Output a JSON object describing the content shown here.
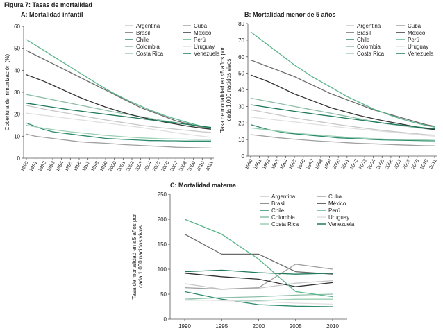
{
  "figure_title": "Figura 7: Tasas de mortalidad",
  "colors": {
    "Argentina": "#c8c8c8",
    "Brasil": "#6b6b6b",
    "Chile": "#2e8b6e",
    "Colombia": "#8fbfa8",
    "Costa Rica": "#9ccfb3",
    "Cuba": "#a0a0a0",
    "México": "#333333",
    "Perú": "#5ab58a",
    "Uruguay": "#e0e0e0",
    "Venezuela": "#1e7a5a"
  },
  "chart_data": [
    {
      "id": "A",
      "type": "line",
      "title": "A: Mortalidad infantil",
      "ylabel": "Cobertura de inmunización (%)",
      "xlabel": "",
      "categories": [
        "1990",
        "1991",
        "1992",
        "1993",
        "1994",
        "1995",
        "1996",
        "1997",
        "1998",
        "1999",
        "2000",
        "2001",
        "2002",
        "2003",
        "2004",
        "2005",
        "2006",
        "2007",
        "2008",
        "2009",
        "2010",
        "2011"
      ],
      "ylim": [
        0,
        60
      ],
      "yticks": [
        0,
        10,
        20,
        30,
        40,
        50,
        60
      ],
      "series": [
        {
          "name": "Argentina",
          "values": [
            24,
            23.2,
            22.4,
            21.6,
            20.9,
            20.2,
            19.5,
            18.8,
            18.1,
            17.4,
            16.8,
            16.2,
            15.6,
            15,
            14.5,
            14,
            13.6,
            13.2,
            12.8,
            12.4,
            12,
            11.7
          ]
        },
        {
          "name": "Brasil",
          "values": [
            49,
            47,
            45,
            43,
            41,
            39,
            37,
            35,
            33,
            31,
            29,
            27,
            25,
            23,
            21.5,
            20,
            18.5,
            17,
            16,
            15,
            14,
            13.5
          ]
        },
        {
          "name": "Chile",
          "values": [
            16,
            14.5,
            13,
            12,
            11.5,
            11,
            10.5,
            10,
            9.5,
            9,
            8.8,
            8.6,
            8.4,
            8.2,
            8,
            8,
            7.9,
            7.9,
            7.8,
            7.8,
            7.8,
            7.8
          ]
        },
        {
          "name": "Colombia",
          "values": [
            29,
            28.2,
            27.4,
            26.6,
            25.8,
            25,
            24.2,
            23.4,
            22.6,
            21.8,
            21,
            20.3,
            19.6,
            18.9,
            18.2,
            17.5,
            16.8,
            16.2,
            15.6,
            15,
            14.5,
            14
          ]
        },
        {
          "name": "Costa Rica",
          "values": [
            15,
            14.3,
            13.6,
            13,
            12.5,
            12,
            11.6,
            11.2,
            10.8,
            10.4,
            10.1,
            9.8,
            9.5,
            9.3,
            9.1,
            8.9,
            8.8,
            8.7,
            8.7,
            8.6,
            8.6,
            8.6
          ]
        },
        {
          "name": "Cuba",
          "values": [
            11,
            10,
            9.5,
            9,
            8.5,
            8,
            7.5,
            7.2,
            7,
            6.8,
            6.5,
            6.2,
            6,
            5.8,
            5.6,
            5.4,
            5.2,
            5,
            4.9,
            4.8,
            4.7,
            4.6
          ]
        },
        {
          "name": "México",
          "values": [
            38,
            36.5,
            35,
            33.2,
            31.4,
            29.6,
            27.8,
            26.2,
            24.7,
            23.3,
            22,
            20.8,
            19.7,
            18.7,
            17.8,
            17,
            16.2,
            15.5,
            14.8,
            14.2,
            13.6,
            13.2
          ]
        },
        {
          "name": "Perú",
          "values": [
            54,
            51.5,
            49,
            46.5,
            44,
            41.5,
            39,
            36.5,
            34,
            31.6,
            29.4,
            27.4,
            25.5,
            23.7,
            22,
            20.5,
            19,
            17.8,
            16.6,
            15.5,
            14.5,
            13.5
          ]
        },
        {
          "name": "Uruguay",
          "values": [
            20.5,
            20,
            19.5,
            19,
            18.5,
            18,
            17.5,
            17,
            16.5,
            16,
            15.5,
            15,
            14.5,
            14,
            13.4,
            12.8,
            12.2,
            11.6,
            11,
            10.5,
            10,
            9.5
          ]
        },
        {
          "name": "Venezuela",
          "values": [
            25,
            24.4,
            23.8,
            23.2,
            22.6,
            22,
            21.5,
            21,
            20.5,
            20,
            19.5,
            19,
            18.5,
            18,
            17.5,
            17,
            16.5,
            16,
            15.5,
            15,
            14.5,
            14
          ]
        }
      ],
      "legend": {
        "col1": [
          "Argentina",
          "Brasil",
          "Chile",
          "Colombia",
          "Costa Rica"
        ],
        "col2": [
          "Cuba",
          "México",
          "Perú",
          "Uruguay",
          "Venezuela"
        ]
      }
    },
    {
      "id": "B",
      "type": "line",
      "title": "B: Mortalidad menor de 5 años",
      "ylabel": "Tasa de mortalidad en ≤5 años por cada 1.000 nacidos vivos",
      "xlabel": "",
      "categories": [
        "1990",
        "1991",
        "1992",
        "1993",
        "1994",
        "1995",
        "1996",
        "1997",
        "1998",
        "1999",
        "2000",
        "2001",
        "2002",
        "2003",
        "2004",
        "2005",
        "2006",
        "2007",
        "2008",
        "2009",
        "2010",
        "2011"
      ],
      "ylim": [
        0,
        80
      ],
      "yticks": [
        0,
        10,
        20,
        30,
        40,
        50,
        60,
        70,
        80
      ],
      "series": [
        {
          "name": "Argentina",
          "values": [
            28,
            27,
            26,
            25,
            24,
            23,
            22.2,
            21.4,
            20.6,
            19.8,
            19,
            18.3,
            17.6,
            16.9,
            16.2,
            15.6,
            15,
            14.5,
            14,
            13.5,
            13,
            12.7
          ]
        },
        {
          "name": "Brasil",
          "values": [
            58,
            56,
            54,
            52,
            50,
            48,
            45.5,
            43,
            40.5,
            38,
            36,
            34,
            32,
            30,
            28,
            26.5,
            25,
            23.5,
            22,
            20.5,
            19,
            18
          ]
        },
        {
          "name": "Chile",
          "values": [
            19,
            17.5,
            16,
            15,
            14,
            13.5,
            13,
            12.5,
            12,
            11.5,
            11,
            10.8,
            10.5,
            10.3,
            10,
            9.8,
            9.7,
            9.6,
            9.5,
            9.4,
            9.3,
            9.2
          ]
        },
        {
          "name": "Colombia",
          "values": [
            35,
            34,
            33,
            32,
            31,
            30,
            29,
            28,
            27,
            26,
            25,
            24,
            23,
            22,
            21,
            20,
            19.2,
            18.5,
            17.8,
            17.1,
            16.5,
            16
          ]
        },
        {
          "name": "Costa Rica",
          "values": [
            17,
            16.4,
            15.8,
            15.2,
            14.6,
            14,
            13.5,
            13,
            12.6,
            12.2,
            11.8,
            11.4,
            11.1,
            10.8,
            10.5,
            10.3,
            10.1,
            10,
            9.9,
            9.8,
            9.7,
            9.6
          ]
        },
        {
          "name": "Cuba",
          "values": [
            13,
            12.4,
            11.8,
            11.2,
            10.7,
            10.2,
            9.8,
            9.4,
            9,
            8.7,
            8.4,
            8.1,
            7.8,
            7.6,
            7.4,
            7.2,
            7,
            6.8,
            6.6,
            6.4,
            6.3,
            6.2
          ]
        },
        {
          "name": "México",
          "values": [
            49,
            47,
            45,
            42.5,
            40,
            37.5,
            35.5,
            33.5,
            31.5,
            29.5,
            28,
            26.5,
            25,
            23.8,
            22.6,
            21.5,
            20.5,
            19.5,
            18.5,
            17.5,
            16.7,
            16
          ]
        },
        {
          "name": "Perú",
          "values": [
            75,
            71,
            67,
            63,
            59,
            55,
            51.5,
            48,
            45,
            42,
            39,
            36,
            33.5,
            31,
            28.5,
            26.5,
            24.5,
            22.8,
            21.2,
            19.8,
            18.5,
            17.5
          ]
        },
        {
          "name": "Uruguay",
          "values": [
            23.5,
            23,
            22.4,
            21.8,
            21.2,
            20.6,
            20,
            19.4,
            18.8,
            18.2,
            17.6,
            17,
            16.5,
            16,
            15.5,
            15,
            14.5,
            14,
            13.5,
            13,
            12.5,
            12
          ]
        },
        {
          "name": "Venezuela",
          "values": [
            31,
            30.2,
            29.4,
            28.6,
            27.8,
            27,
            26.3,
            25.6,
            24.9,
            24.2,
            23.5,
            22.8,
            22.1,
            21.4,
            20.7,
            20,
            19.4,
            18.8,
            18.2,
            17.6,
            17,
            16.5
          ]
        }
      ],
      "legend": {
        "col1": [
          "Argentina",
          "Brasil",
          "Chile",
          "Colombia",
          "Costa Rica"
        ],
        "col2": [
          "Cuba",
          "México",
          "Perú",
          "Uruguay",
          "Venezuela"
        ]
      }
    },
    {
      "id": "C",
      "type": "line",
      "title": "C: Mortalidad materna",
      "ylabel": "Tasa de mortalidad en ≤5 años por cada 1.000 nacidos vivos",
      "xlabel": "",
      "categories": [
        "1990",
        "1995",
        "2000",
        "2005",
        "2010"
      ],
      "ylim": [
        0,
        250
      ],
      "yticks": [
        0,
        50,
        100,
        150,
        200,
        250
      ],
      "series": [
        {
          "name": "Argentina",
          "values": [
            71,
            60,
            62,
            72,
            77
          ]
        },
        {
          "name": "Brasil",
          "values": [
            170,
            130,
            130,
            95,
            90
          ]
        },
        {
          "name": "Chile",
          "values": [
            55,
            40,
            29,
            26,
            25
          ]
        },
        {
          "name": "Colombia",
          "values": [
            40,
            43,
            45,
            48,
            50
          ]
        },
        {
          "name": "Costa Rica",
          "values": [
            38,
            38,
            37,
            40,
            40
          ]
        },
        {
          "name": "Cuba",
          "values": [
            63,
            60,
            63,
            110,
            100
          ]
        },
        {
          "name": "México",
          "values": [
            92,
            85,
            80,
            65,
            73
          ]
        },
        {
          "name": "Perú",
          "values": [
            200,
            170,
            120,
            55,
            45
          ]
        },
        {
          "name": "Uruguay",
          "values": [
            39,
            37,
            35,
            32,
            30
          ]
        },
        {
          "name": "Venezuela",
          "values": [
            95,
            98,
            93,
            90,
            92
          ]
        }
      ],
      "legend": {
        "col1": [
          "Argentina",
          "Brasil",
          "Chile",
          "Colombia",
          "Costa Rica"
        ],
        "col2": [
          "Cuba",
          "México",
          "Perú",
          "Uruguay",
          "Venezuela"
        ]
      }
    }
  ]
}
